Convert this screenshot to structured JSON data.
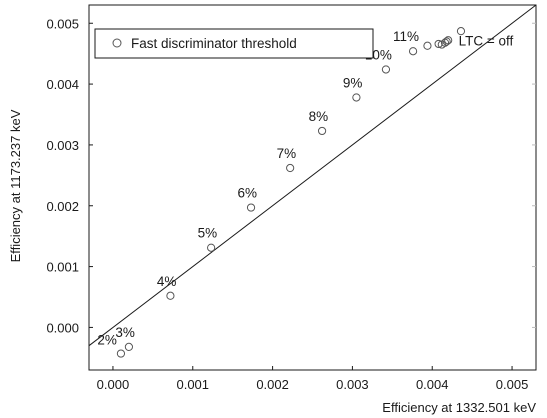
{
  "chart_data": {
    "type": "scatter",
    "xlabel": "Efficiency at 1332.501 keV",
    "ylabel": "Efficiency at 1173.237 keV",
    "xlim": [
      -0.0003,
      0.0053
    ],
    "ylim": [
      -0.0007,
      0.0053
    ],
    "x_ticks": [
      "0.000",
      "0.001",
      "0.002",
      "0.003",
      "0.004",
      "0.005"
    ],
    "x_tick_values": [
      0.0,
      0.001,
      0.002,
      0.003,
      0.004,
      0.005
    ],
    "y_ticks": [
      "0.000",
      "0.001",
      "0.002",
      "0.003",
      "0.004",
      "0.005"
    ],
    "y_tick_values": [
      0.0,
      0.001,
      0.002,
      0.003,
      0.004,
      0.005
    ],
    "grid": false,
    "legend": {
      "position": "top-left",
      "entries": [
        "Fast discriminator threshold"
      ]
    },
    "reference_line": {
      "type": "diagonal",
      "from": [
        -0.0003,
        -0.0003
      ],
      "to": [
        0.0053,
        0.0053
      ]
    },
    "series": [
      {
        "name": "Fast discriminator threshold",
        "points": [
          {
            "x": 0.0001,
            "y": -0.00043,
            "label": "2%"
          },
          {
            "x": 0.0002,
            "y": -0.00032,
            "label": "3%"
          },
          {
            "x": 0.00072,
            "y": 0.00052,
            "label": "4%"
          },
          {
            "x": 0.00123,
            "y": 0.00131,
            "label": "5%"
          },
          {
            "x": 0.00173,
            "y": 0.00197,
            "label": "6%"
          },
          {
            "x": 0.00222,
            "y": 0.00262,
            "label": "7%"
          },
          {
            "x": 0.00262,
            "y": 0.00323,
            "label": "8%"
          },
          {
            "x": 0.00305,
            "y": 0.00378,
            "label": "9%"
          },
          {
            "x": 0.00342,
            "y": 0.00424,
            "label": "10%"
          },
          {
            "x": 0.00376,
            "y": 0.00454,
            "label": "11%"
          },
          {
            "x": 0.00394,
            "y": 0.00463,
            "label": ""
          },
          {
            "x": 0.00408,
            "y": 0.00466,
            "label": ""
          },
          {
            "x": 0.00412,
            "y": 0.00465,
            "label": ""
          },
          {
            "x": 0.00416,
            "y": 0.00468,
            "label": ""
          },
          {
            "x": 0.0042,
            "y": 0.00472,
            "label": ""
          },
          {
            "x": 0.00436,
            "y": 0.00487,
            "label": ""
          },
          {
            "x": 0.00418,
            "y": 0.0047,
            "label": "LTC = off"
          }
        ]
      }
    ]
  }
}
